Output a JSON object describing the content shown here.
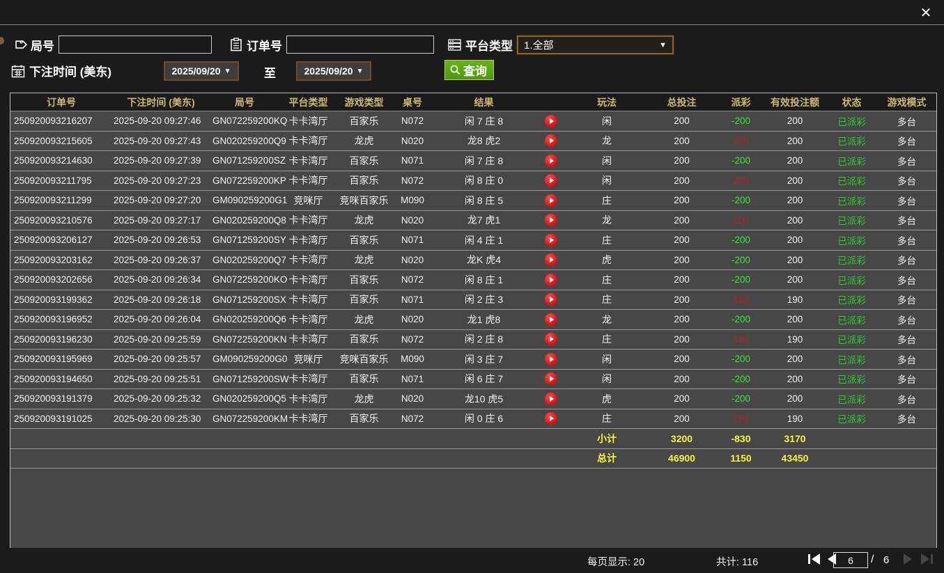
{
  "window": {
    "close_label": "✕"
  },
  "icons": {
    "dropdown_arrow": "▼",
    "tag": "tag-icon",
    "clipboard": "clipboard-icon",
    "platform": "server-list-icon",
    "calendar": "calendar-icon",
    "search": "magnifier-icon",
    "play": "red-play-circle"
  },
  "colors": {
    "header_text": "#cdb873",
    "payout_win_red": "#b22424",
    "payout_loss_green": "#39e639",
    "status_green": "#2ecc2e",
    "summary_yellow": "#f7f733",
    "search_button_green": "#55a411",
    "date_border_brown": "#7a4a1e",
    "dropdown_border_gold": "#8a6428",
    "row_bg": "#474747",
    "page_bg": "#1b1b1b"
  },
  "filters": {
    "round_label": "局号",
    "round_value": "",
    "order_label": "订单号",
    "order_value": "",
    "platform_label": "平台类型",
    "platform_value": "1.全部",
    "time_label": "下注时间 (美东)",
    "date_from": "2025/09/20",
    "to_label": "至",
    "date_to": "2025/09/20",
    "search_label": "查询"
  },
  "table": {
    "columns": [
      {
        "key": "order",
        "label": "订单号"
      },
      {
        "key": "time",
        "label": "下注时间 (美东)"
      },
      {
        "key": "round",
        "label": "局号"
      },
      {
        "key": "platform",
        "label": "平台类型"
      },
      {
        "key": "game",
        "label": "游戏类型"
      },
      {
        "key": "tableNo",
        "label": "桌号"
      },
      {
        "key": "result",
        "label": "结果"
      },
      {
        "key": "play",
        "label": ""
      },
      {
        "key": "method",
        "label": "玩法"
      },
      {
        "key": "bet",
        "label": "总投注"
      },
      {
        "key": "payout",
        "label": "派彩"
      },
      {
        "key": "valid",
        "label": "有效投注额"
      },
      {
        "key": "status",
        "label": "状态"
      },
      {
        "key": "mode",
        "label": "游戏模式"
      }
    ],
    "rows": [
      {
        "order": "250920093216207",
        "time": "2025-09-20 09:27:46",
        "round": "GN072259200KQ",
        "platform": "卡卡湾厅",
        "game": "百家乐",
        "tableNo": "N072",
        "result": "闲 7 庄 8",
        "play": true,
        "method": "闲",
        "bet": "200",
        "payout": "-200",
        "valid": "200",
        "status": "已派彩",
        "mode": "多台"
      },
      {
        "order": "250920093215605",
        "time": "2025-09-20 09:27:43",
        "round": "GN020259200Q9",
        "platform": "卡卡湾厅",
        "game": "龙虎",
        "tableNo": "N020",
        "result": "龙8 虎2",
        "play": true,
        "method": "龙",
        "bet": "200",
        "payout": "200",
        "valid": "200",
        "status": "已派彩",
        "mode": "多台"
      },
      {
        "order": "250920093214630",
        "time": "2025-09-20 09:27:39",
        "round": "GN071259200SZ",
        "platform": "卡卡湾厅",
        "game": "百家乐",
        "tableNo": "N071",
        "result": "闲 7 庄 8",
        "play": true,
        "method": "闲",
        "bet": "200",
        "payout": "-200",
        "valid": "200",
        "status": "已派彩",
        "mode": "多台"
      },
      {
        "order": "250920093211795",
        "time": "2025-09-20 09:27:23",
        "round": "GN072259200KP",
        "platform": "卡卡湾厅",
        "game": "百家乐",
        "tableNo": "N072",
        "result": "闲 8 庄 0",
        "play": true,
        "method": "闲",
        "bet": "200",
        "payout": "200",
        "valid": "200",
        "status": "已派彩",
        "mode": "多台"
      },
      {
        "order": "250920093211299",
        "time": "2025-09-20 09:27:20",
        "round": "GM090259200G1",
        "platform": "竞咪厅",
        "game": "竞咪百家乐",
        "tableNo": "M090",
        "result": "闲 8 庄 5",
        "play": true,
        "method": "庄",
        "bet": "200",
        "payout": "-200",
        "valid": "200",
        "status": "已派彩",
        "mode": "多台"
      },
      {
        "order": "250920093210576",
        "time": "2025-09-20 09:27:17",
        "round": "GN020259200Q8",
        "platform": "卡卡湾厅",
        "game": "龙虎",
        "tableNo": "N020",
        "result": "龙7 虎1",
        "play": true,
        "method": "龙",
        "bet": "200",
        "payout": "200",
        "valid": "200",
        "status": "已派彩",
        "mode": "多台"
      },
      {
        "order": "250920093206127",
        "time": "2025-09-20 09:26:53",
        "round": "GN071259200SY",
        "platform": "卡卡湾厅",
        "game": "百家乐",
        "tableNo": "N071",
        "result": "闲 4 庄 1",
        "play": true,
        "method": "庄",
        "bet": "200",
        "payout": "-200",
        "valid": "200",
        "status": "已派彩",
        "mode": "多台"
      },
      {
        "order": "250920093203162",
        "time": "2025-09-20 09:26:37",
        "round": "GN020259200Q7",
        "platform": "卡卡湾厅",
        "game": "龙虎",
        "tableNo": "N020",
        "result": "龙K 虎4",
        "play": true,
        "method": "虎",
        "bet": "200",
        "payout": "-200",
        "valid": "200",
        "status": "已派彩",
        "mode": "多台"
      },
      {
        "order": "250920093202656",
        "time": "2025-09-20 09:26:34",
        "round": "GN072259200KO",
        "platform": "卡卡湾厅",
        "game": "百家乐",
        "tableNo": "N072",
        "result": "闲 8 庄 1",
        "play": true,
        "method": "庄",
        "bet": "200",
        "payout": "-200",
        "valid": "200",
        "status": "已派彩",
        "mode": "多台"
      },
      {
        "order": "250920093199362",
        "time": "2025-09-20 09:26:18",
        "round": "GN071259200SX",
        "platform": "卡卡湾厅",
        "game": "百家乐",
        "tableNo": "N071",
        "result": "闲 2 庄 3",
        "play": true,
        "method": "庄",
        "bet": "200",
        "payout": "190",
        "valid": "190",
        "status": "已派彩",
        "mode": "多台"
      },
      {
        "order": "250920093196952",
        "time": "2025-09-20 09:26:04",
        "round": "GN020259200Q6",
        "platform": "卡卡湾厅",
        "game": "龙虎",
        "tableNo": "N020",
        "result": "龙1 虎8",
        "play": true,
        "method": "龙",
        "bet": "200",
        "payout": "-200",
        "valid": "200",
        "status": "已派彩",
        "mode": "多台"
      },
      {
        "order": "250920093196230",
        "time": "2025-09-20 09:25:59",
        "round": "GN072259200KN",
        "platform": "卡卡湾厅",
        "game": "百家乐",
        "tableNo": "N072",
        "result": "闲 2 庄 8",
        "play": true,
        "method": "庄",
        "bet": "200",
        "payout": "190",
        "valid": "190",
        "status": "已派彩",
        "mode": "多台"
      },
      {
        "order": "250920093195969",
        "time": "2025-09-20 09:25:57",
        "round": "GM090259200G0",
        "platform": "竞咪厅",
        "game": "竞咪百家乐",
        "tableNo": "M090",
        "result": "闲 3 庄 7",
        "play": true,
        "method": "闲",
        "bet": "200",
        "payout": "-200",
        "valid": "200",
        "status": "已派彩",
        "mode": "多台"
      },
      {
        "order": "250920093194650",
        "time": "2025-09-20 09:25:51",
        "round": "GN071259200SW",
        "platform": "卡卡湾厅",
        "game": "百家乐",
        "tableNo": "N071",
        "result": "闲 6 庄 7",
        "play": true,
        "method": "闲",
        "bet": "200",
        "payout": "-200",
        "valid": "200",
        "status": "已派彩",
        "mode": "多台"
      },
      {
        "order": "250920093191379",
        "time": "2025-09-20 09:25:32",
        "round": "GN020259200Q5",
        "platform": "卡卡湾厅",
        "game": "龙虎",
        "tableNo": "N020",
        "result": "龙10 虎5",
        "play": true,
        "method": "虎",
        "bet": "200",
        "payout": "-200",
        "valid": "200",
        "status": "已派彩",
        "mode": "多台"
      },
      {
        "order": "250920093191025",
        "time": "2025-09-20 09:25:30",
        "round": "GN072259200KM",
        "platform": "卡卡湾厅",
        "game": "百家乐",
        "tableNo": "N072",
        "result": "闲 0 庄 6",
        "play": true,
        "method": "庄",
        "bet": "200",
        "payout": "190",
        "valid": "190",
        "status": "已派彩",
        "mode": "多台"
      }
    ],
    "subtotal": {
      "method": "小计",
      "bet": "3200",
      "payout": "-830",
      "valid": "3170"
    },
    "total": {
      "method": "总计",
      "bet": "46900",
      "payout": "1150",
      "valid": "43450"
    }
  },
  "footer": {
    "per_page_label": "每页显示: 20",
    "total_label": "共计: 116",
    "page_value": "6",
    "page_sep": "/",
    "page_total": "6"
  }
}
